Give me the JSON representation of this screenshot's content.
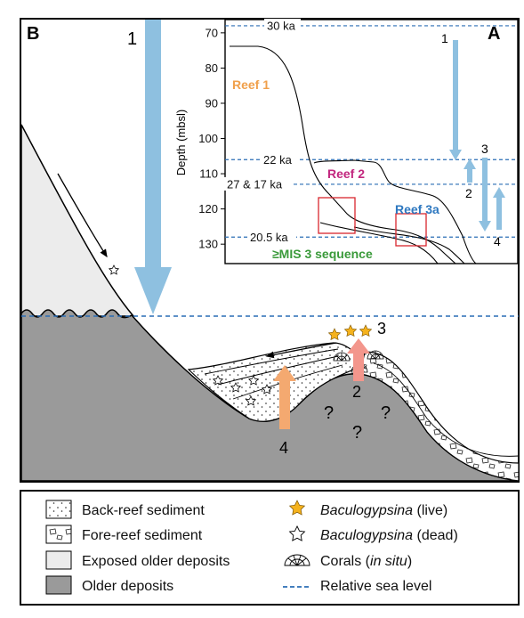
{
  "panel_b": {
    "letter": "B",
    "arrow_labels": {
      "fall": "1",
      "rise_main": "2",
      "crest": "3",
      "rise_back": "4"
    },
    "unknowns": [
      "?",
      "?",
      "?"
    ],
    "colors": {
      "sea_level": "#2a6db5",
      "blue_arrow": "#8ec0e0",
      "red_arrow": "#f3968c",
      "orange_arrow": "#f4a970",
      "older_deposits": "#9a9a9a",
      "exposed_deposits": "#ececec",
      "star_live": "#f5b21c"
    }
  },
  "panel_a": {
    "letter": "A",
    "y_axis_title": "Depth (mbsl)",
    "y_ticks": [
      "70",
      "80",
      "90",
      "100",
      "110",
      "120",
      "130"
    ],
    "y_range": [
      67,
      134
    ],
    "sea_level_lines": [
      {
        "label": "30 ka",
        "depth": 68
      },
      {
        "label": "22 ka",
        "depth": 106
      },
      {
        "label": "27 & 17 ka",
        "depth": 113
      },
      {
        "label": "20.5 ka",
        "depth": 128
      }
    ],
    "units": [
      {
        "label": "Reef 1",
        "color": "#f0a04b"
      },
      {
        "label": "Reef 2",
        "color": "#c2267e"
      },
      {
        "label": "Reef 3a",
        "color": "#2e78c0"
      },
      {
        "label": "≥MIS 3 sequence",
        "color": "#3a9a3a"
      }
    ],
    "arrow_labels": [
      "1",
      "2",
      "3",
      "4"
    ]
  },
  "legend": {
    "items_left": [
      {
        "icon": "back-reef-sediment-swatch",
        "label": "Back-reef sediment"
      },
      {
        "icon": "fore-reef-sediment-swatch",
        "label": "Fore-reef sediment"
      },
      {
        "icon": "exposed-older-deposits-swatch",
        "label": "Exposed older deposits"
      },
      {
        "icon": "older-deposits-swatch",
        "label": "Older deposits"
      }
    ],
    "items_right": [
      {
        "icon": "filled-star-icon",
        "name": "Baculogypsina",
        "qualifier": "(live)"
      },
      {
        "icon": "open-star-icon",
        "name": "Baculogypsina",
        "qualifier": "(dead)"
      },
      {
        "icon": "coral-icon",
        "name": "Corals",
        "qualifier": "in situ"
      },
      {
        "icon": "dashed-line-icon",
        "name": "Relative sea level",
        "qualifier": ""
      }
    ]
  }
}
